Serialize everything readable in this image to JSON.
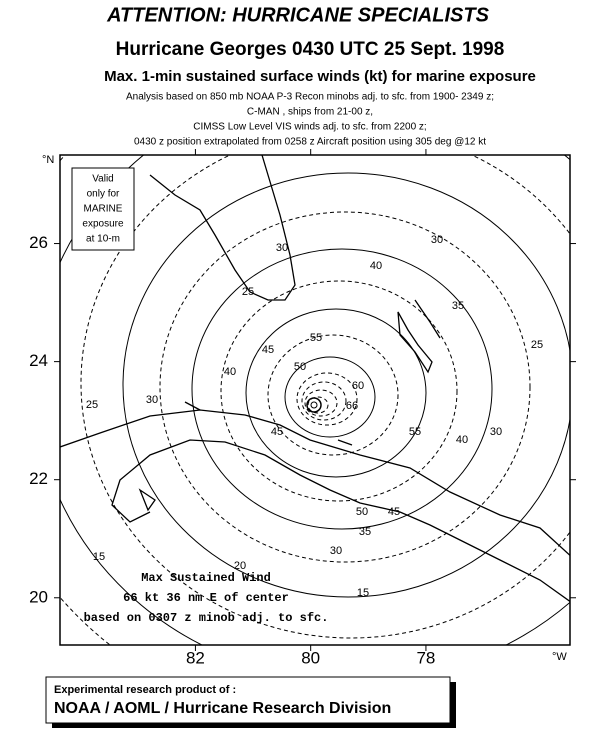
{
  "header": {
    "title": "ATTENTION: HURRICANE SPECIALISTS",
    "subtitle": "Hurricane Georges 0430 UTC 25 Sept. 1998",
    "heading": "Max. 1-min sustained surface winds (kt) for marine exposure",
    "notes": [
      "Analysis based on 850 mb NOAA P-3 Recon minobs adj. to sfc. from 1900- 2349 z;",
      "C-MAN , ships from 21-00 z,",
      "CIMSS Low Level VIS winds adj. to sfc. from 2200 z;",
      "0430 z position extrapolated from 0258 z Aircraft position using 305 deg @12 kt"
    ]
  },
  "map": {
    "latlim": [
      19.2,
      27.5
    ],
    "lonlim": [
      84.35,
      75.5
    ],
    "lat_ticks": [
      20,
      22,
      24,
      26
    ],
    "lon_ticks": [
      82,
      80,
      78
    ],
    "lat_unit": "°N",
    "lon_unit": "°W",
    "validity_note": [
      "Valid",
      "only for",
      "MARINE",
      "exposure",
      "at 10-m"
    ],
    "contour_labels": [
      30,
      30,
      40,
      25,
      35,
      25,
      45,
      55,
      40,
      50,
      30,
      60,
      66,
      25,
      45,
      55,
      40,
      30,
      50,
      45,
      35,
      30,
      20,
      15,
      15
    ],
    "max_wind_note": [
      "Max Sustained Wind",
      "66 kt  36 nm E of center",
      "based on 0307 z minob adj. to sfc."
    ]
  },
  "footer": {
    "label": "Experimental research product of :",
    "organization": "NOAA / AOML / Hurricane Research Division"
  }
}
